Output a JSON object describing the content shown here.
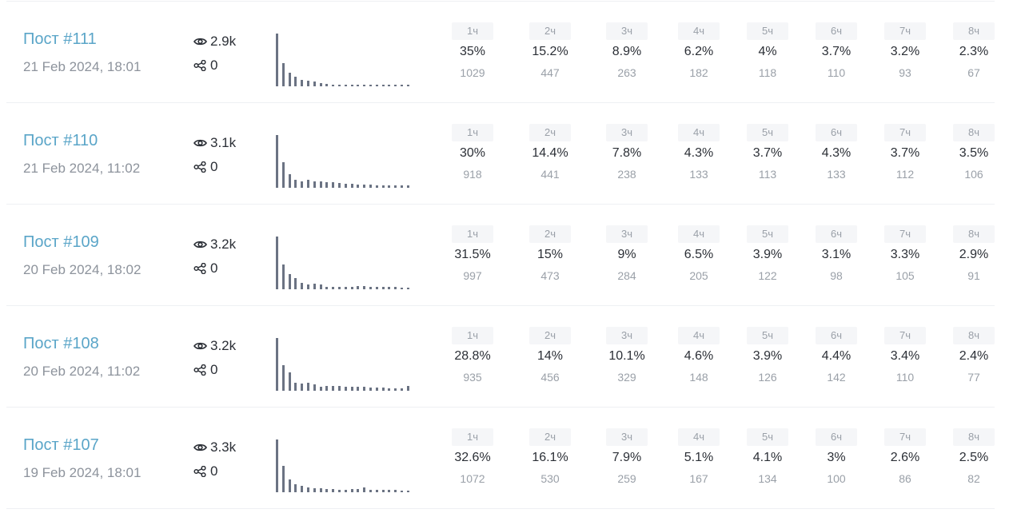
{
  "hour_labels": [
    "1ч",
    "2ч",
    "3ч",
    "4ч",
    "5ч",
    "6ч",
    "7ч",
    "8ч"
  ],
  "colors": {
    "link": "#5aa5c8",
    "bar": "#6b7383",
    "muted": "#8d939c"
  },
  "posts": [
    {
      "title": "Пост #111",
      "date": "21 Feb 2024, 18:01",
      "views": "2.9k",
      "shares": "0",
      "sparkline": [
        1029,
        447,
        263,
        182,
        118,
        110,
        93,
        67,
        40,
        30,
        26,
        24,
        22,
        24,
        28,
        36,
        32,
        28,
        26,
        22,
        18,
        10
      ],
      "hours": [
        {
          "pct": "35%",
          "count": "1029"
        },
        {
          "pct": "15.2%",
          "count": "447"
        },
        {
          "pct": "8.9%",
          "count": "263"
        },
        {
          "pct": "6.2%",
          "count": "182"
        },
        {
          "pct": "4%",
          "count": "118"
        },
        {
          "pct": "3.7%",
          "count": "110"
        },
        {
          "pct": "3.2%",
          "count": "93"
        },
        {
          "pct": "2.3%",
          "count": "67"
        }
      ]
    },
    {
      "title": "Пост #110",
      "date": "21 Feb 2024, 11:02",
      "views": "3.1k",
      "shares": "0",
      "sparkline": [
        918,
        441,
        238,
        133,
        113,
        133,
        112,
        106,
        100,
        95,
        90,
        75,
        75,
        60,
        55,
        50,
        45,
        45,
        40,
        40,
        40,
        45
      ],
      "hours": [
        {
          "pct": "30%",
          "count": "918"
        },
        {
          "pct": "14.4%",
          "count": "441"
        },
        {
          "pct": "7.8%",
          "count": "238"
        },
        {
          "pct": "4.3%",
          "count": "133"
        },
        {
          "pct": "3.7%",
          "count": "113"
        },
        {
          "pct": "4.3%",
          "count": "133"
        },
        {
          "pct": "3.7%",
          "count": "112"
        },
        {
          "pct": "3.5%",
          "count": "106"
        }
      ]
    },
    {
      "title": "Пост #109",
      "date": "20 Feb 2024, 18:02",
      "views": "3.2k",
      "shares": "0",
      "sparkline": [
        997,
        473,
        284,
        205,
        122,
        98,
        105,
        91,
        50,
        45,
        45,
        45,
        48,
        55,
        60,
        50,
        45,
        40,
        40,
        38,
        36,
        36
      ],
      "hours": [
        {
          "pct": "31.5%",
          "count": "997"
        },
        {
          "pct": "15%",
          "count": "473"
        },
        {
          "pct": "9%",
          "count": "284"
        },
        {
          "pct": "6.5%",
          "count": "205"
        },
        {
          "pct": "3.9%",
          "count": "122"
        },
        {
          "pct": "3.1%",
          "count": "98"
        },
        {
          "pct": "3.3%",
          "count": "105"
        },
        {
          "pct": "2.9%",
          "count": "91"
        }
      ]
    },
    {
      "title": "Пост #108",
      "date": "20 Feb 2024, 11:02",
      "views": "3.2k",
      "shares": "0",
      "sparkline": [
        935,
        456,
        329,
        148,
        126,
        142,
        110,
        77,
        90,
        85,
        80,
        70,
        65,
        75,
        70,
        60,
        55,
        50,
        48,
        45,
        45,
        80
      ],
      "hours": [
        {
          "pct": "28.8%",
          "count": "935"
        },
        {
          "pct": "14%",
          "count": "456"
        },
        {
          "pct": "10.1%",
          "count": "329"
        },
        {
          "pct": "4.6%",
          "count": "148"
        },
        {
          "pct": "3.9%",
          "count": "126"
        },
        {
          "pct": "4.4%",
          "count": "142"
        },
        {
          "pct": "3.4%",
          "count": "110"
        },
        {
          "pct": "2.4%",
          "count": "77"
        }
      ]
    },
    {
      "title": "Пост #107",
      "date": "19 Feb 2024, 18:01",
      "views": "3.3k",
      "shares": "0",
      "sparkline": [
        1072,
        530,
        259,
        167,
        134,
        100,
        86,
        82,
        65,
        60,
        55,
        50,
        60,
        65,
        90,
        55,
        45,
        45,
        45,
        42,
        40,
        40
      ],
      "hours": [
        {
          "pct": "32.6%",
          "count": "1072"
        },
        {
          "pct": "16.1%",
          "count": "530"
        },
        {
          "pct": "7.9%",
          "count": "259"
        },
        {
          "pct": "5.1%",
          "count": "167"
        },
        {
          "pct": "4.1%",
          "count": "134"
        },
        {
          "pct": "3%",
          "count": "100"
        },
        {
          "pct": "2.6%",
          "count": "86"
        },
        {
          "pct": "2.5%",
          "count": "82"
        }
      ]
    }
  ]
}
